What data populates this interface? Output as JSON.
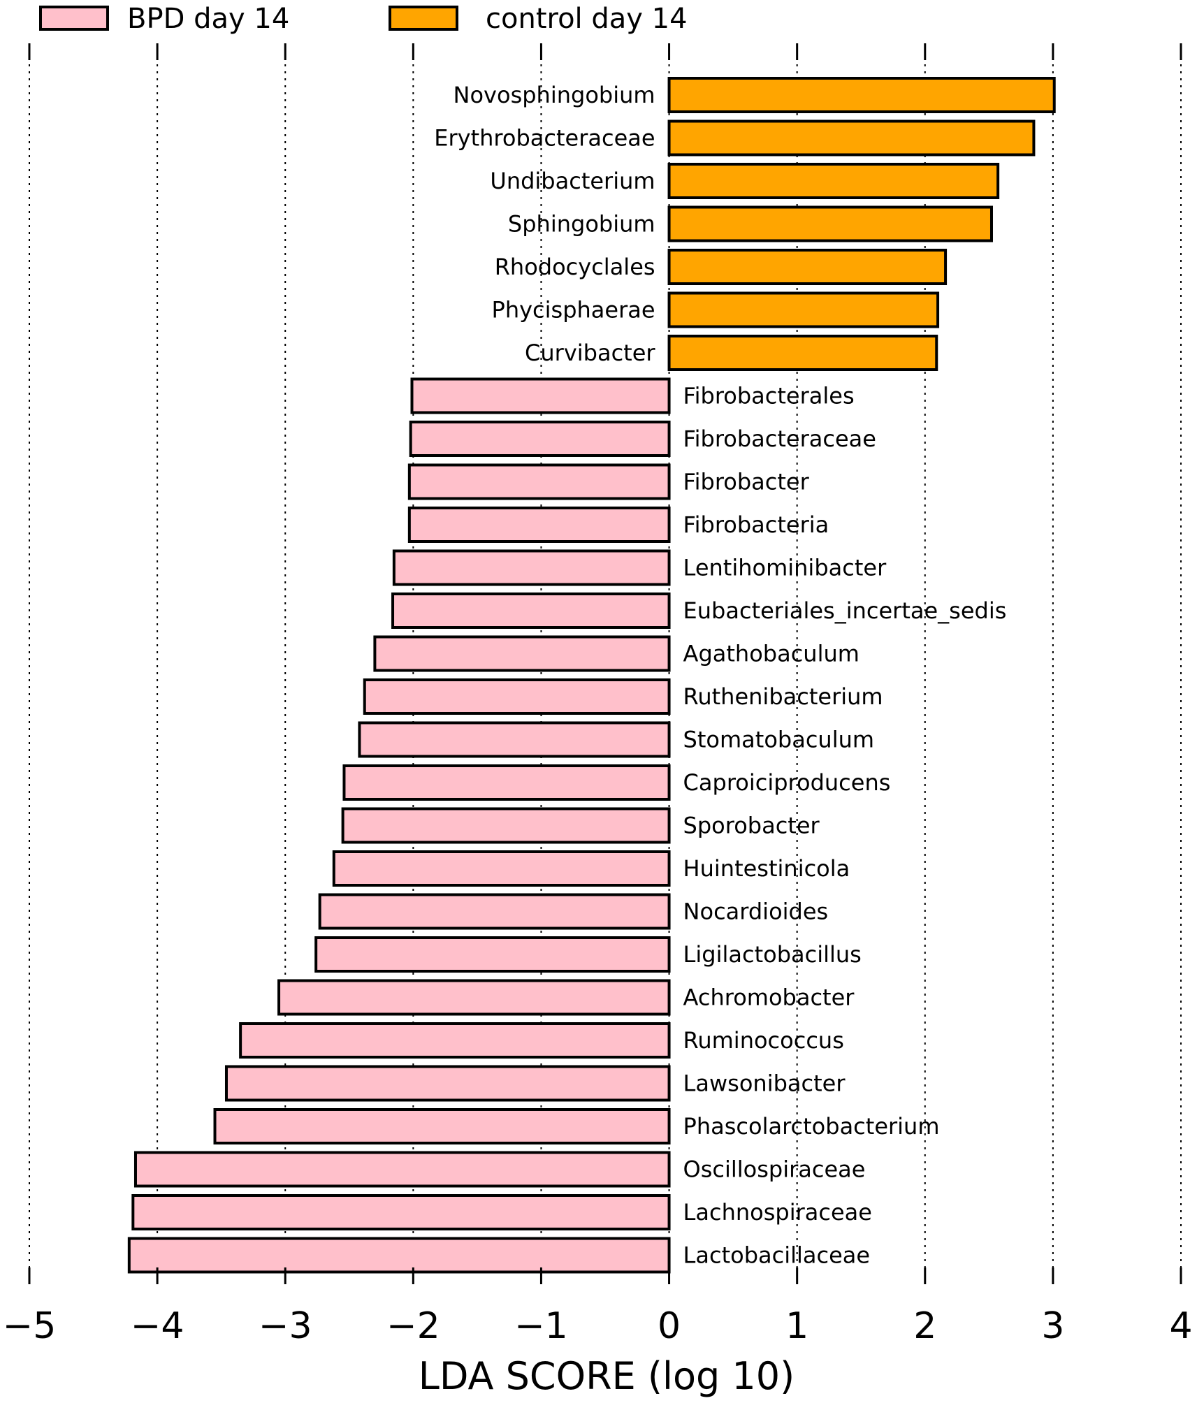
{
  "chart_data": {
    "type": "bar",
    "orientation": "horizontal",
    "xlabel": "LDA SCORE (log 10)",
    "xlim": [
      -5,
      4
    ],
    "xticks": [
      -5,
      -4,
      -3,
      -2,
      -1,
      0,
      1,
      2,
      3,
      4
    ],
    "xtick_labels": [
      "−5",
      "−4",
      "−3",
      "−2",
      "−1",
      "0",
      "1",
      "2",
      "3",
      "4"
    ],
    "grid": true,
    "legend_position": "top-left",
    "series": [
      {
        "name": "BPD day 14",
        "color": "#ffc0cb"
      },
      {
        "name": "control day 14",
        "color": "#ffa500"
      }
    ],
    "bars": [
      {
        "label": "Novosphingobium",
        "value": 3.01,
        "group": "control day 14"
      },
      {
        "label": "Erythrobacteraceae",
        "value": 2.85,
        "group": "control day 14"
      },
      {
        "label": "Undibacterium",
        "value": 2.57,
        "group": "control day 14"
      },
      {
        "label": "Sphingobium",
        "value": 2.52,
        "group": "control day 14"
      },
      {
        "label": "Rhodocyclales",
        "value": 2.16,
        "group": "control day 14"
      },
      {
        "label": "Phycisphaerae",
        "value": 2.1,
        "group": "control day 14"
      },
      {
        "label": "Curvibacter",
        "value": 2.09,
        "group": "control day 14"
      },
      {
        "label": "Fibrobacterales",
        "value": -2.01,
        "group": "BPD day 14"
      },
      {
        "label": "Fibrobacteraceae",
        "value": -2.02,
        "group": "BPD day 14"
      },
      {
        "label": "Fibrobacter",
        "value": -2.03,
        "group": "BPD day 14"
      },
      {
        "label": "Fibrobacteria",
        "value": -2.03,
        "group": "BPD day 14"
      },
      {
        "label": "Lentihominibacter",
        "value": -2.15,
        "group": "BPD day 14"
      },
      {
        "label": "Eubacteriales_incertae_sedis",
        "value": -2.16,
        "group": "BPD day 14"
      },
      {
        "label": "Agathobaculum",
        "value": -2.3,
        "group": "BPD day 14"
      },
      {
        "label": "Ruthenibacterium",
        "value": -2.38,
        "group": "BPD day 14"
      },
      {
        "label": "Stomatobaculum",
        "value": -2.42,
        "group": "BPD day 14"
      },
      {
        "label": "Caproiciproducens",
        "value": -2.54,
        "group": "BPD day 14"
      },
      {
        "label": "Sporobacter",
        "value": -2.55,
        "group": "BPD day 14"
      },
      {
        "label": "Huintestinicola",
        "value": -2.62,
        "group": "BPD day 14"
      },
      {
        "label": "Nocardioides",
        "value": -2.73,
        "group": "BPD day 14"
      },
      {
        "label": "Ligilactobacillus",
        "value": -2.76,
        "group": "BPD day 14"
      },
      {
        "label": "Achromobacter",
        "value": -3.05,
        "group": "BPD day 14"
      },
      {
        "label": "Ruminococcus",
        "value": -3.35,
        "group": "BPD day 14"
      },
      {
        "label": "Lawsonibacter",
        "value": -3.46,
        "group": "BPD day 14"
      },
      {
        "label": "Phascolarctobacterium",
        "value": -3.55,
        "group": "BPD day 14"
      },
      {
        "label": "Oscillospiraceae",
        "value": -4.17,
        "group": "BPD day 14"
      },
      {
        "label": "Lachnospiraceae",
        "value": -4.19,
        "group": "BPD day 14"
      },
      {
        "label": "Lactobacillaceae",
        "value": -4.22,
        "group": "BPD day 14"
      }
    ]
  }
}
